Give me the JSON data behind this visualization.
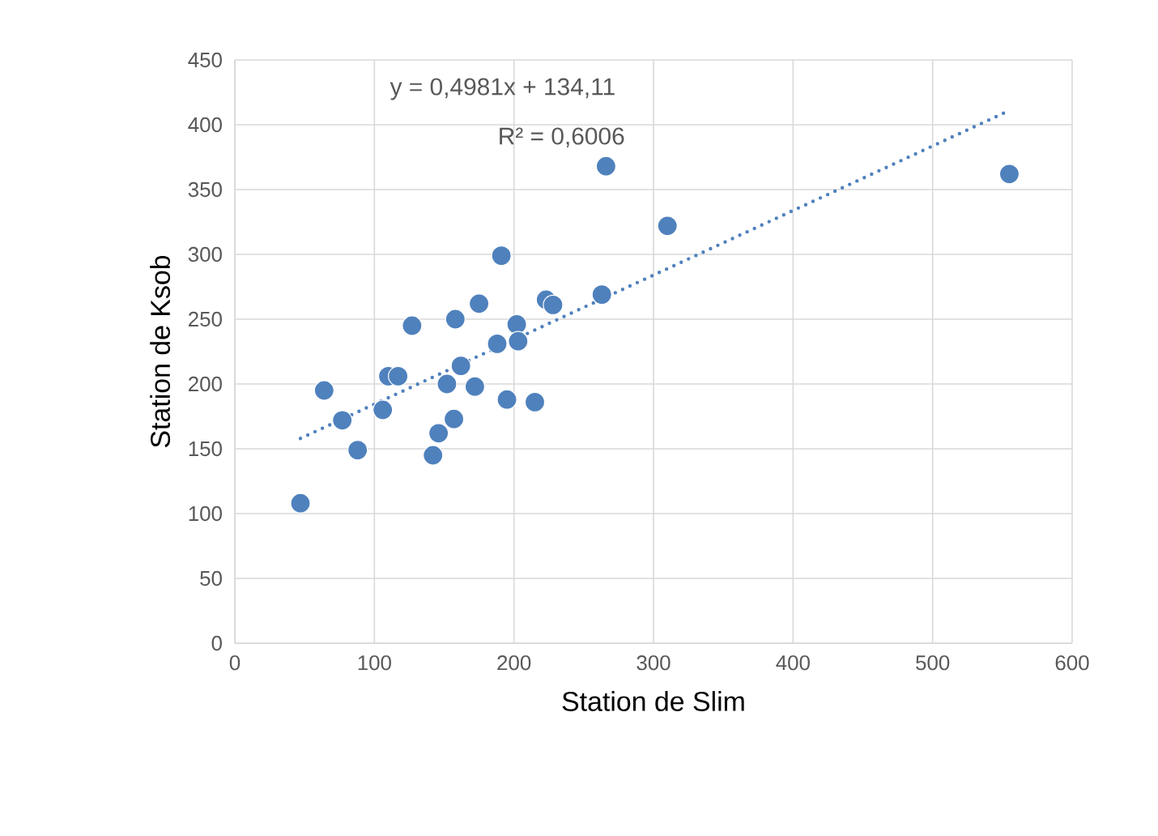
{
  "chart_data": {
    "type": "scatter",
    "xlabel": "Station de Slim",
    "ylabel": "Station de Ksob",
    "xlim": [
      0,
      600
    ],
    "ylim": [
      0,
      450
    ],
    "xticks": [
      0,
      100,
      200,
      300,
      400,
      500,
      600
    ],
    "yticks": [
      0,
      50,
      100,
      150,
      200,
      250,
      300,
      350,
      400,
      450
    ],
    "grid": true,
    "annotations": [
      "y = 0,4981x + 134,11",
      "R² = 0,6006"
    ],
    "series": [
      {
        "color": "#4f81bd",
        "marker": "circle",
        "x": [
          47,
          64,
          77,
          88,
          106,
          110,
          117,
          127,
          142,
          146,
          152,
          157,
          158,
          162,
          172,
          175,
          188,
          191,
          195,
          202,
          203,
          215,
          223,
          228,
          263,
          266,
          310,
          555
        ],
        "values": [
          108,
          195,
          172,
          149,
          180,
          206,
          206,
          245,
          145,
          162,
          200,
          173,
          250,
          214,
          198,
          262,
          231,
          299,
          188,
          246,
          233,
          186,
          265,
          261,
          269,
          368,
          322,
          362
        ]
      },
      {
        "type": "line",
        "color": "#4f81bd",
        "line_style": "dotted",
        "marker": "none",
        "x": [
          47,
          555
        ],
        "values": [
          158,
          411
        ]
      }
    ]
  }
}
